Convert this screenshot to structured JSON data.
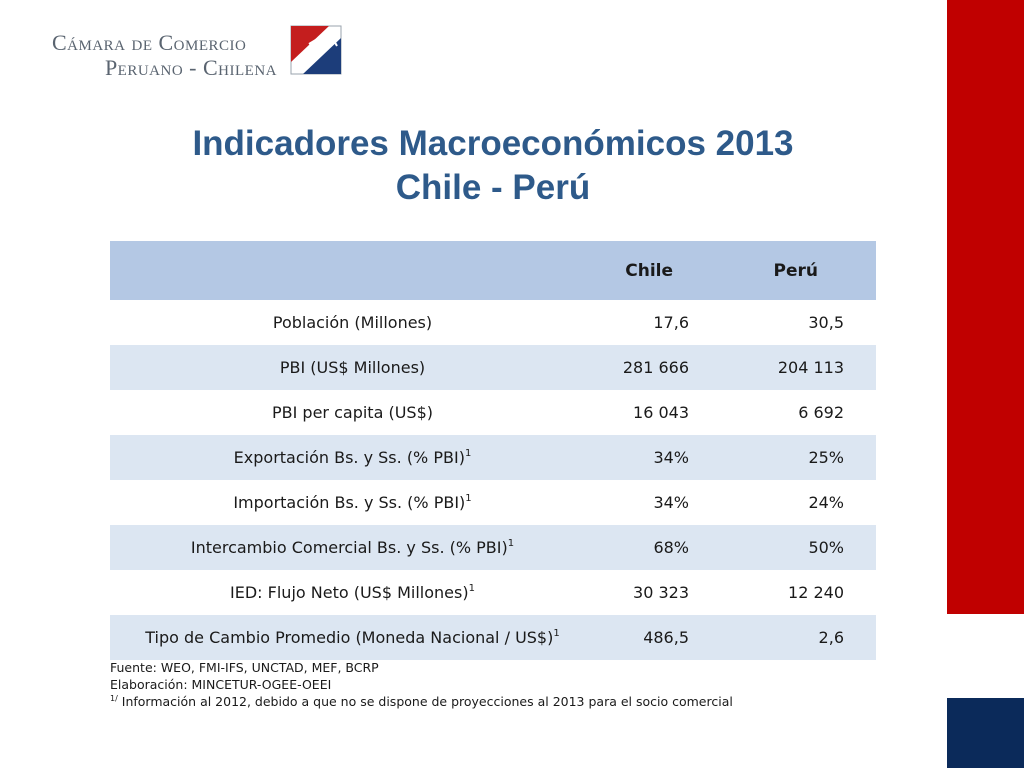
{
  "branding": {
    "org_line1": "Cámara de Comercio",
    "org_line2": "Peruano - Chilena",
    "colors": {
      "red": "#c00000",
      "navy": "#0b2a5a",
      "title_blue": "#2e5a8a",
      "header_blue": "#b4c8e4",
      "row_blue": "#dce6f2"
    }
  },
  "title": {
    "line1": "Indicadores Macroeconómicos 2013",
    "line2": "Chile - Perú"
  },
  "table": {
    "headers": {
      "label": "",
      "chile": "Chile",
      "peru": "Perú"
    },
    "rows": [
      {
        "label": "Población (Millones)",
        "note": "",
        "chile": "17,6",
        "peru": "30,5"
      },
      {
        "label": "PBI (US$ Millones)",
        "note": "",
        "chile": "281 666",
        "peru": "204 113"
      },
      {
        "label": "PBI per capita (US$)",
        "note": "",
        "chile": "16 043",
        "peru": "6 692"
      },
      {
        "label": "Exportación  Bs. y Ss. (% PBI)",
        "note": "1",
        "chile": "34%",
        "peru": "25%"
      },
      {
        "label": "Importación  Bs. y Ss. (% PBI)",
        "note": "1",
        "chile": "34%",
        "peru": "24%"
      },
      {
        "label": "Intercambio Comercial Bs. y Ss. (% PBI)",
        "note": "1",
        "chile": "68%",
        "peru": "50%"
      },
      {
        "label": "IED: Flujo Neto (US$ Millones)",
        "note": "1",
        "chile": "30 323",
        "peru": "12 240"
      },
      {
        "label": "Tipo de Cambio Promedio (Moneda Nacional / US$)",
        "note": "1",
        "chile": "486,5",
        "peru": "2,6"
      }
    ]
  },
  "notes": {
    "source": "Fuente: WEO, FMI-IFS, UNCTAD, MEF, BCRP",
    "prepared": "Elaboración: MINCETUR-OGEE-OEEI",
    "footnote_mark": "1/",
    "footnote_text": " Información al 2012, debido a que no se dispone de proyecciones al 2013 para el socio comercial"
  }
}
